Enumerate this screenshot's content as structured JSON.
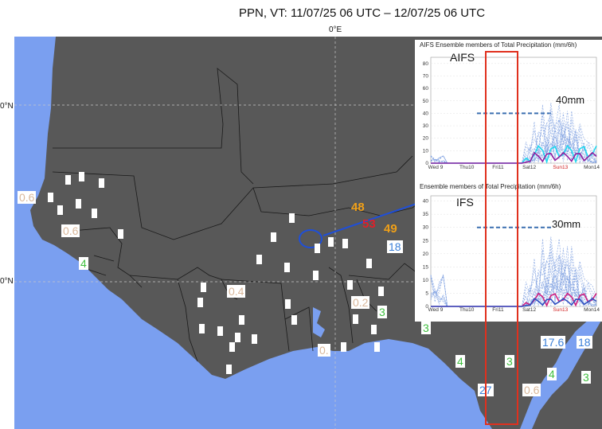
{
  "title": "PPN, VT: 11/07/25 06 UTC – 12/07/25 06 UTC",
  "lon_label": "0°E",
  "lat_labels": [
    "0°N",
    "0°N"
  ],
  "colors": {
    "ocean": "#7a9ff0",
    "land": "#585858",
    "orange": "#f0a018",
    "red": "#e0202a",
    "green": "#3fbf3f",
    "blue": "#3a7fd8",
    "beige": "#d9b79a",
    "highlight_box": "#e0301e"
  },
  "observations": [
    {
      "text": "0.6",
      "color": "beige"
    },
    {
      "text": "0.6",
      "color": "beige"
    },
    {
      "text": "4",
      "color": "green"
    },
    {
      "text": "0.4",
      "color": "beige"
    },
    {
      "text": "0.2",
      "color": "beige"
    },
    {
      "text": "0.",
      "color": "beige"
    },
    {
      "text": "3",
      "color": "green"
    },
    {
      "text": "3",
      "color": "green"
    },
    {
      "text": "3",
      "color": "green"
    },
    {
      "text": "4",
      "color": "green"
    },
    {
      "text": "3",
      "color": "green"
    },
    {
      "text": "27",
      "color": "blue"
    },
    {
      "text": "0.6",
      "color": "beige"
    },
    {
      "text": "4",
      "color": "green"
    },
    {
      "text": "3",
      "color": "green"
    },
    {
      "text": "17.6",
      "color": "blue"
    },
    {
      "text": "18",
      "color": "blue"
    },
    {
      "text": "18",
      "color": "blue"
    }
  ],
  "highlight_values": [
    {
      "text": "48",
      "color": "orange"
    },
    {
      "text": "53",
      "color": "red"
    },
    {
      "text": "49",
      "color": "orange"
    }
  ],
  "insets": [
    {
      "title": "AIFS Ensemble members of Total Precipitation (mm/6h)",
      "model": "AIFS",
      "annotation": "40mm",
      "annotation_value": 40,
      "yticks": [
        "0",
        "10",
        "20",
        "30",
        "40",
        "50",
        "60",
        "70",
        "80"
      ],
      "ylim": [
        0,
        85
      ],
      "xticks": [
        "Wed 9",
        "Thu10",
        "Fri11",
        "Sat12",
        "Sun13",
        "Mon14"
      ]
    },
    {
      "title": "Ensemble members of Total Precipitation (mm/6h)",
      "model": "IFS",
      "annotation": "30mm",
      "annotation_value": 30,
      "yticks": [
        "0",
        "5",
        "10",
        "15",
        "20",
        "25",
        "30",
        "35",
        "40"
      ],
      "ylim": [
        0,
        42
      ],
      "xticks": [
        "Wed 9",
        "Thu10",
        "Fri11",
        "Sat12",
        "Sun13",
        "Mon14"
      ]
    }
  ]
}
